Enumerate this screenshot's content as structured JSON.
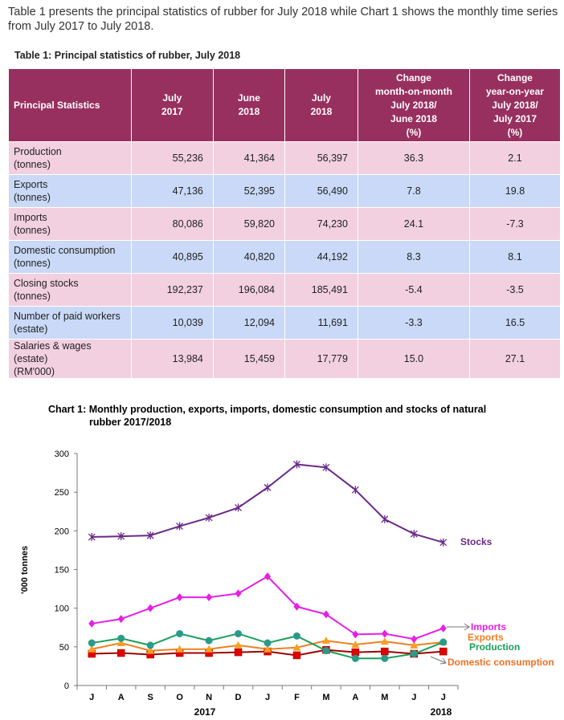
{
  "intro": "Table 1 presents the principal statistics of rubber for July 2018 while Chart 1 shows the monthly time series from July 2017 to July 2018.",
  "table_title": "Table 1: Principal statistics  of rubber, July 2018",
  "headers": [
    [
      "Principal Statistics"
    ],
    [
      "July",
      "2017"
    ],
    [
      "June",
      "2018"
    ],
    [
      "July",
      "2018"
    ],
    [
      "Change",
      "month-on-month",
      "July 2018/",
      "June 2018",
      "(%)"
    ],
    [
      "Change",
      "year-on-year",
      "July 2018/",
      "July 2017",
      "(%)"
    ]
  ],
  "rows": [
    {
      "l1": "Production",
      "l2": "(tonnes)",
      "v": [
        "55,236",
        "41,364",
        "56,397",
        "36.3",
        "2.1"
      ]
    },
    {
      "l1": "Exports",
      "l2": "(tonnes)",
      "v": [
        "47,136",
        "52,395",
        "56,490",
        "7.8",
        "19.8"
      ]
    },
    {
      "l1": "Imports",
      "l2": "(tonnes)",
      "v": [
        "80,086",
        "59,820",
        "74,230",
        "24.1",
        "-7.3"
      ]
    },
    {
      "l1": "Domestic consumption",
      "l2": "(tonnes)",
      "v": [
        "40,895",
        "40,820",
        "44,192",
        "8.3",
        "8.1"
      ]
    },
    {
      "l1": "Closing stocks",
      "l2": "(tonnes)",
      "v": [
        "192,237",
        "196,084",
        "185,491",
        "-5.4",
        "-3.5"
      ]
    },
    {
      "l1": "Number of paid workers",
      "l2": "(estate)",
      "v": [
        "10,039",
        "12,094",
        "11,691",
        "-3.3",
        "16.5"
      ]
    },
    {
      "l1": "Salaries & wages (estate)",
      "l2": "(RM'000)",
      "v": [
        "13,984",
        "15,459",
        "17,779",
        "15.0",
        "27.1"
      ]
    }
  ],
  "chart_data": {
    "type": "line",
    "title": "Chart 1: Monthly production, exports, imports, domestic consumption and stocks of natural",
    "title2": "rubber 2017/2018",
    "ylabel": "'000 tonnes",
    "ylim": [
      0,
      300
    ],
    "yticks": [
      "0",
      "50",
      "100",
      "150",
      "200",
      "250",
      "300"
    ],
    "categories": [
      "J",
      "A",
      "S",
      "O",
      "N",
      "D",
      "J",
      "F",
      "M",
      "A",
      "M",
      "J",
      "J"
    ],
    "year_labels": [
      "2017",
      "2018"
    ],
    "series": [
      {
        "name": "Stocks",
        "color": "#6a2a8a",
        "marker": "star",
        "values": [
          192,
          193,
          194,
          206,
          217,
          230,
          256,
          286,
          282,
          253,
          215,
          196,
          185
        ]
      },
      {
        "name": "Imports",
        "color": "#e61ee6",
        "marker": "diamond",
        "values": [
          80,
          86,
          100,
          114,
          114,
          119,
          141,
          102,
          92,
          66,
          67,
          60,
          74
        ]
      },
      {
        "name": "Production",
        "color": "#1aa05a",
        "marker": "circle",
        "values": [
          55,
          61,
          52,
          67,
          58,
          67,
          55,
          64,
          45,
          35,
          35,
          41,
          56
        ]
      },
      {
        "name": "Exports",
        "color": "#f08020",
        "marker": "triangle",
        "values": [
          47,
          55,
          45,
          47,
          47,
          52,
          47,
          49,
          58,
          53,
          57,
          52,
          56
        ]
      },
      {
        "name": "Domestic consumption",
        "color": "#a00000",
        "marker": "square",
        "values": [
          41,
          42,
          40,
          42,
          42,
          43,
          44,
          39,
          46,
          43,
          44,
          41,
          44
        ]
      }
    ]
  }
}
